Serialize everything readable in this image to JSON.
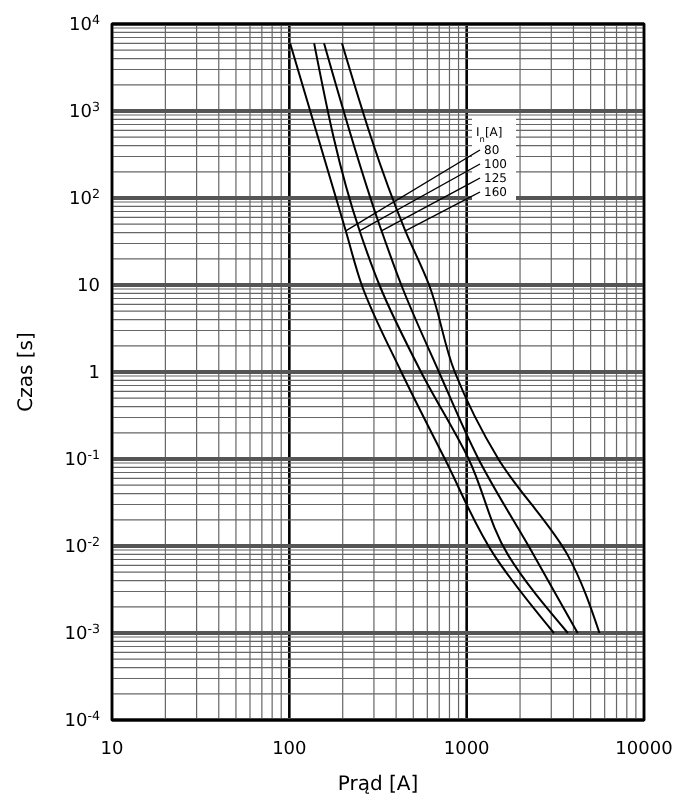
{
  "chart_data": {
    "type": "line",
    "xlabel": "Prąd [A]",
    "ylabel": "Czas [s]",
    "legend_title": "I$_{n}$[A]",
    "log": "xy",
    "grid": true,
    "legend": "top right",
    "marker": "none",
    "line_style": "solid",
    "xlim": [
      10,
      10000
    ],
    "xticks": [
      10,
      100,
      1000,
      10000
    ],
    "ylim": [
      0.0001,
      10000
    ],
    "yticks": [
      {
        "value": 0.0001,
        "label": "10$^{-4}$"
      },
      {
        "value": 0.001,
        "label": "10$^{-3}$"
      },
      {
        "value": 0.01,
        "label": "10$^{-2}$"
      },
      {
        "value": 0.1,
        "label": "10$^{-1}$"
      },
      1,
      10,
      {
        "value": 100,
        "label": "10$^{2}$"
      },
      {
        "value": 1000,
        "label": "10$^{3}$"
      },
      {
        "value": 10000,
        "label": "10$^{4}$"
      }
    ],
    "series": [
      {
        "name": "80",
        "color": "#000000",
        "x": [
          101,
          208,
          256,
          428,
          754,
          1432,
          3105
        ],
        "values": [
          6000,
          42,
          10,
          1,
          0.1,
          0.0078,
          0.001
        ]
      },
      {
        "name": "100",
        "color": "#000000",
        "x": [
          138,
          249,
          322,
          553,
          1026,
          1717,
          3720
        ],
        "values": [
          6000,
          42,
          10,
          1,
          0.1,
          0.0078,
          0.001
        ]
      },
      {
        "name": "125",
        "color": "#000000",
        "x": [
          157,
          331,
          428,
          698,
          1166,
          2396,
          4225
        ],
        "values": [
          6000,
          42,
          10,
          1,
          0.1,
          0.0078,
          0.001
        ]
      },
      {
        "name": "160",
        "color": "#000000",
        "x": [
          198,
          451,
          614,
          857,
          1509,
          3720,
          5610
        ],
        "values": [
          6000,
          42,
          10,
          1,
          0.1,
          0.0078,
          0.001
        ]
      }
    ]
  }
}
